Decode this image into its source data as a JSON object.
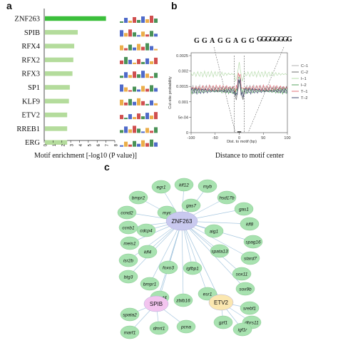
{
  "panels": {
    "a": "a",
    "b": "b",
    "c": "c"
  },
  "chart_data": [
    {
      "type": "bar",
      "orientation": "horizontal",
      "categories": [
        "ZNF263",
        "SPIB",
        "RFX4",
        "RFX2",
        "RFX3",
        "SP1",
        "KLF9",
        "ETV2",
        "RREB1",
        "ERG"
      ],
      "values": [
        7.0,
        3.8,
        3.4,
        3.3,
        3.2,
        2.9,
        2.8,
        2.6,
        2.6,
        2.6
      ],
      "highlight_color": "#3bbf3b",
      "bar_color": "#b4dc9c",
      "xticks": [
        "0",
        "1",
        "2",
        "3",
        "4",
        "5",
        "6",
        "7",
        "8"
      ],
      "xlim": [
        0,
        8
      ],
      "xlabel": "Motif enrichment [-log10 (P value)]"
    },
    {
      "type": "line",
      "x_range": [
        -100,
        100
      ],
      "ylim": [
        0,
        0.0025
      ],
      "xticks": [
        "-100",
        "-50",
        "0",
        "50",
        "100"
      ],
      "yticks": [
        "0",
        "5e-04",
        "0.001",
        "0.0015",
        "0.002",
        "0.0025"
      ],
      "ylabel": "Cut-site probability",
      "xlabel_inner": "Dist. to motif (bp)",
      "xlabel": "Distance to motif center",
      "legend": [
        "C–1",
        "C–2",
        "I–1",
        "I–2",
        "T–1",
        "T–2"
      ],
      "logo_sequence": "GGAGGAGG",
      "series": [
        {
          "name": "C–1",
          "color": "#b0b0b0",
          "baseline": 0.00145,
          "peak": 0.0017
        },
        {
          "name": "C–2",
          "color": "#707070",
          "baseline": 0.0014,
          "peak": 0.0016
        },
        {
          "name": "I–1",
          "color": "#b8dcae",
          "baseline": 0.0019,
          "peak": 0.0022
        },
        {
          "name": "I–2",
          "color": "#5aa560",
          "baseline": 0.00135,
          "peak": 0.0018
        },
        {
          "name": "T–1",
          "color": "#e0707a",
          "baseline": 0.00145,
          "peak": 0.0019
        },
        {
          "name": "T–2",
          "color": "#404870",
          "baseline": 0.00135,
          "peak": 0.0017
        }
      ]
    }
  ],
  "network": {
    "hubs": [
      {
        "id": "ZNF263",
        "label": "ZNF263",
        "color": "#c9c9ef"
      },
      {
        "id": "SPIB",
        "label": "SPIB",
        "color": "#f3c4ef"
      },
      {
        "id": "ETV2",
        "label": "ETV2",
        "color": "#fbe7b0"
      }
    ],
    "gene_color": "#a8e2b0",
    "genes": [
      {
        "label": "egr1",
        "hub": "ZNF263"
      },
      {
        "label": "klf12",
        "hub": "ZNF263"
      },
      {
        "label": "myb",
        "hub": "ZNF263"
      },
      {
        "label": "bmpr2",
        "hub": "ZNF263"
      },
      {
        "label": "hsd17b",
        "hub": "ZNF263"
      },
      {
        "label": "gas7",
        "hub": "ZNF263"
      },
      {
        "label": "myc",
        "hub": "ZNF263"
      },
      {
        "label": "ccnd2",
        "hub": "ZNF263"
      },
      {
        "label": "gas1",
        "hub": "ZNF263"
      },
      {
        "label": "ccnb1",
        "hub": "ZNF263"
      },
      {
        "label": "aig1",
        "hub": "ZNF263"
      },
      {
        "label": "cdcp4",
        "hub": "ZNF263"
      },
      {
        "label": "klf8",
        "hub": "ZNF263"
      },
      {
        "label": "meis1",
        "hub": "ZNF263"
      },
      {
        "label": "spata13",
        "hub": "ZNF263"
      },
      {
        "label": "spag16",
        "hub": "ZNF263"
      },
      {
        "label": "isr2b",
        "hub": "ZNF263"
      },
      {
        "label": "klf4",
        "hub": "ZNF263"
      },
      {
        "label": "stard7",
        "hub": "ZNF263"
      },
      {
        "label": "foxo3",
        "hub": "ZNF263"
      },
      {
        "label": "igfbp1",
        "hub": "ZNF263"
      },
      {
        "label": "btg3",
        "hub": "ZNF263"
      },
      {
        "label": "sox11",
        "hub": "ZNF263"
      },
      {
        "label": "bmpr1",
        "hub": "ZNF263"
      },
      {
        "label": "sox9b",
        "hub": "ZNF263"
      },
      {
        "label": "smad4",
        "hub": "ZNF263"
      },
      {
        "label": "esr1",
        "hub": "ZNF263"
      },
      {
        "label": "zbtb16",
        "hub": "ZNF263"
      },
      {
        "label": "spata2",
        "hub": "SPIB"
      },
      {
        "label": "marf1",
        "hub": "SPIB"
      },
      {
        "label": "dmrt1",
        "hub": "SPIB"
      },
      {
        "label": "pcna",
        "hub": "SPIB"
      },
      {
        "label": "srebf1",
        "hub": "ETV2"
      },
      {
        "label": "dhrs11",
        "hub": "ETV2"
      },
      {
        "label": "gzf1",
        "hub": "ETV2"
      },
      {
        "label": "igf1r",
        "hub": "ETV2"
      }
    ],
    "hub_links": [
      [
        "ZNF263",
        "SPIB"
      ],
      [
        "ZNF263",
        "ETV2"
      ]
    ]
  }
}
